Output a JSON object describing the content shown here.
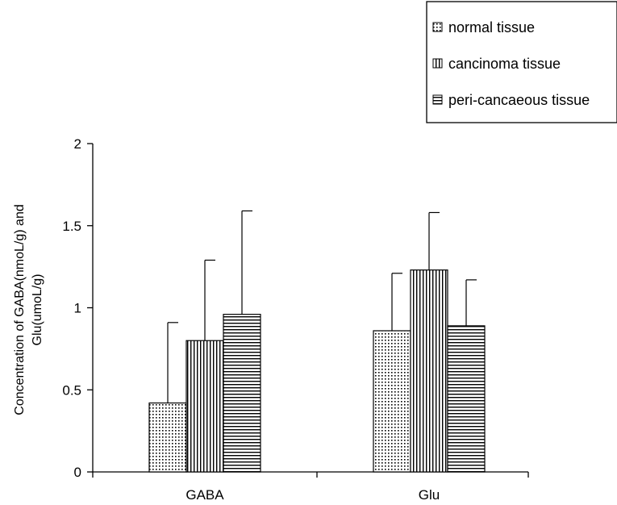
{
  "chart_data": {
    "type": "bar",
    "title": "",
    "xlabel": "",
    "ylabel_lines": [
      "Concentration of GABA(nmoL/g) and",
      "Glu(umoL/g)"
    ],
    "categories": [
      "GABA",
      "Glu"
    ],
    "ylim": [
      0,
      2
    ],
    "yticks": [
      0,
      0.5,
      1,
      1.5,
      2
    ],
    "ytick_labels": [
      "0",
      "0.5",
      "1",
      "1.5",
      "2"
    ],
    "series": [
      {
        "name": "normal tissue",
        "pattern": "dots",
        "values": [
          0.42,
          0.86
        ],
        "errors": [
          0.49,
          0.35
        ]
      },
      {
        "name": "cancinoma tissue",
        "pattern": "vertical-lines",
        "values": [
          0.8,
          1.23
        ],
        "errors": [
          0.49,
          0.35
        ]
      },
      {
        "name": "peri-cancaeous tissue",
        "pattern": "horizontal-lines",
        "values": [
          0.96,
          0.89
        ],
        "errors": [
          0.63,
          0.28
        ]
      }
    ],
    "legend_position": "top-right",
    "grid": false,
    "colors": {
      "bar_fill": "#ffffff",
      "ink": "#000000"
    }
  }
}
